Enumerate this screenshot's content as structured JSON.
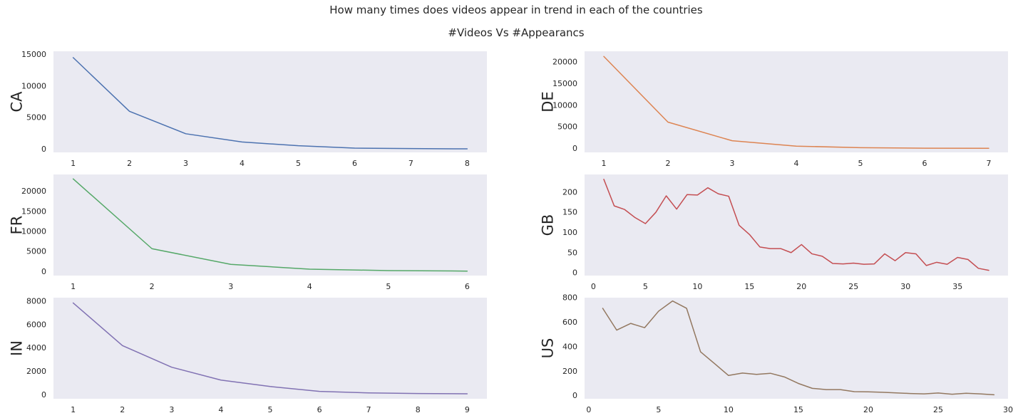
{
  "figure": {
    "title": "How many times does videos appear in trend in each of the countries",
    "subtitle": "#Videos Vs #Appearancs"
  },
  "chart_data": [
    {
      "type": "line",
      "ylabel": "CA",
      "color": "#4c72b0",
      "x": [
        1,
        2,
        3,
        4,
        5,
        6,
        7,
        8
      ],
      "y": [
        14500,
        6000,
        2450,
        1150,
        550,
        180,
        100,
        60
      ],
      "xlim": [
        0.65,
        8.35
      ],
      "ylim": [
        -500,
        15500
      ],
      "xticks": [
        1,
        2,
        3,
        4,
        5,
        6,
        7,
        8
      ],
      "yticks": [
        0,
        5000,
        10000,
        15000
      ],
      "grid": false
    },
    {
      "type": "line",
      "ylabel": "DE",
      "color": "#dd8452",
      "x": [
        1,
        2,
        3,
        4,
        5,
        6,
        7
      ],
      "y": [
        21300,
        6100,
        1800,
        550,
        200,
        70,
        40
      ],
      "xlim": [
        0.7,
        7.3
      ],
      "ylim": [
        -900,
        22500
      ],
      "xticks": [
        1,
        2,
        3,
        4,
        5,
        6,
        7
      ],
      "yticks": [
        0,
        5000,
        10000,
        15000,
        20000
      ],
      "grid": false
    },
    {
      "type": "line",
      "ylabel": "FR",
      "color": "#55a868",
      "x": [
        1,
        2,
        3,
        4,
        5,
        6
      ],
      "y": [
        23100,
        5700,
        1800,
        600,
        250,
        120
      ],
      "xlim": [
        0.75,
        6.25
      ],
      "ylim": [
        -1000,
        24200
      ],
      "xticks": [
        1,
        2,
        3,
        4,
        5,
        6
      ],
      "yticks": [
        0,
        5000,
        10000,
        15000,
        20000
      ],
      "grid": false
    },
    {
      "type": "line",
      "ylabel": "GB",
      "color": "#c44e52",
      "x": [
        1,
        2,
        3,
        4,
        5,
        6,
        7,
        8,
        9,
        10,
        11,
        12,
        13,
        14,
        15,
        16,
        17,
        18,
        19,
        20,
        21,
        22,
        23,
        24,
        25,
        26,
        27,
        28,
        29,
        30,
        31,
        32,
        33,
        34,
        35,
        36,
        37,
        38
      ],
      "y": [
        232,
        166,
        157,
        137,
        122,
        150,
        191,
        158,
        194,
        193,
        211,
        196,
        190,
        118,
        95,
        64,
        60,
        60,
        50,
        70,
        47,
        41,
        23,
        22,
        24,
        21,
        22,
        47,
        30,
        50,
        47,
        18,
        26,
        21,
        38,
        33,
        11,
        6
      ],
      "xlim": [
        -0.85,
        39.85
      ],
      "ylim": [
        -7,
        244
      ],
      "xticks": [
        0,
        5,
        10,
        15,
        20,
        25,
        30,
        35
      ],
      "yticks": [
        0,
        50,
        100,
        150,
        200
      ],
      "grid": false
    },
    {
      "type": "line",
      "ylabel": "IN",
      "color": "#8172b3",
      "x": [
        1,
        2,
        3,
        4,
        5,
        6,
        7,
        8,
        9
      ],
      "y": [
        7850,
        4200,
        2350,
        1250,
        700,
        280,
        150,
        100,
        80
      ],
      "xlim": [
        0.6,
        9.4
      ],
      "ylim": [
        -350,
        8300
      ],
      "xticks": [
        1,
        2,
        3,
        4,
        5,
        6,
        7,
        8,
        9
      ],
      "yticks": [
        0,
        2000,
        4000,
        6000,
        8000
      ],
      "grid": false
    },
    {
      "type": "line",
      "ylabel": "US",
      "color": "#937860",
      "x": [
        1,
        2,
        3,
        4,
        5,
        6,
        7,
        8,
        9,
        10,
        11,
        12,
        13,
        14,
        15,
        16,
        17,
        18,
        19,
        20,
        21,
        22,
        23,
        24,
        25,
        26,
        27,
        28,
        29
      ],
      "y": [
        713,
        535,
        590,
        555,
        690,
        773,
        713,
        358,
        262,
        165,
        185,
        174,
        183,
        153,
        100,
        60,
        50,
        50,
        33,
        32,
        28,
        23,
        18,
        15,
        22,
        12,
        20,
        15,
        8
      ],
      "xlim": [
        -0.3,
        30.0
      ],
      "ylim": [
        -25,
        800
      ],
      "xticks": [
        0,
        5,
        10,
        15,
        20,
        25,
        30
      ],
      "yticks": [
        0,
        200,
        400,
        600,
        800
      ],
      "grid": false
    }
  ]
}
